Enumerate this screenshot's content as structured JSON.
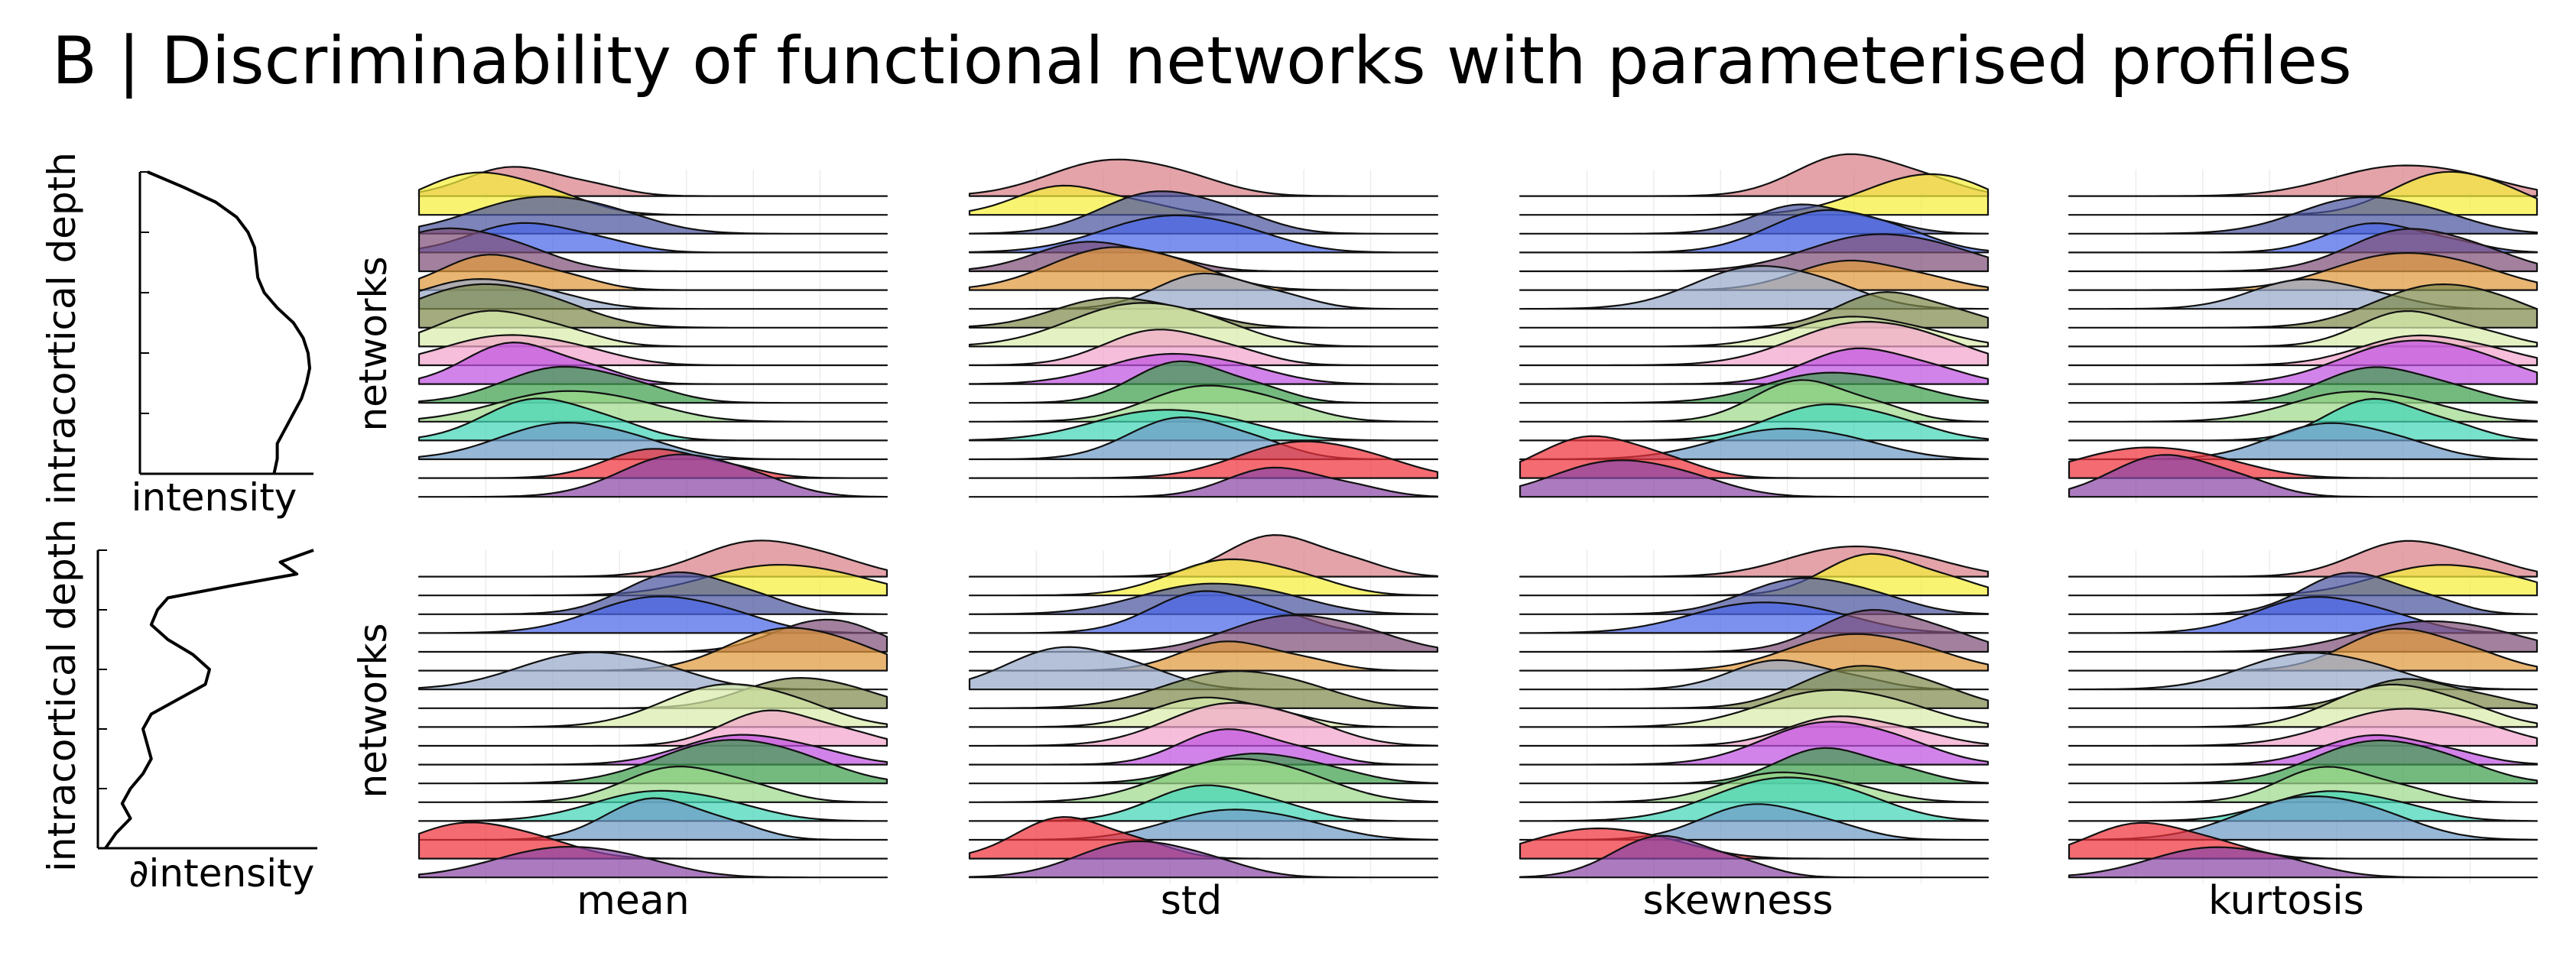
{
  "title": "B | Discriminability of functional networks with parameterised profiles",
  "profile_panels": [
    {
      "ylabel": "intracortical depth",
      "xlabel": "intensity"
    },
    {
      "ylabel": "intracortical depth",
      "xlabel": "∂intensity"
    }
  ],
  "row_label": "networks",
  "column_labels": [
    "mean",
    "std",
    "skewness",
    "kurtosis"
  ],
  "colors": [
    "#d98088",
    "#f5f03c",
    "#4b559f",
    "#4a66e8",
    "#7e4f79",
    "#e0993c",
    "#97a9c9",
    "#7f8a4e",
    "#d9edac",
    "#f2a5cc",
    "#c153e2",
    "#3e9f4e",
    "#9ed98c",
    "#43d6b7",
    "#6f9bc8",
    "#f0323b",
    "#8a47a6"
  ],
  "chart_data": {
    "type": "ridgeline",
    "n_networks": 17,
    "profile_curves": [
      {
        "panel": "intensity",
        "depth": [
          0,
          0.05,
          0.1,
          0.15,
          0.2,
          0.25,
          0.3,
          0.35,
          0.4,
          0.45,
          0.5,
          0.55,
          0.6,
          0.65,
          0.7,
          0.75,
          0.8,
          0.85,
          0.9,
          0.95,
          1.0
        ],
        "value": [
          0.0,
          0.22,
          0.42,
          0.55,
          0.62,
          0.66,
          0.67,
          0.68,
          0.72,
          0.8,
          0.9,
          0.96,
          0.99,
          1.0,
          0.98,
          0.95,
          0.9,
          0.85,
          0.8,
          0.8,
          0.78
        ]
      },
      {
        "panel": "∂intensity",
        "depth": [
          0,
          0.04,
          0.08,
          0.12,
          0.16,
          0.2,
          0.25,
          0.3,
          0.35,
          0.4,
          0.45,
          0.5,
          0.55,
          0.6,
          0.65,
          0.7,
          0.75,
          0.8,
          0.85,
          0.9,
          0.95,
          1.0
        ],
        "value": [
          1.0,
          0.84,
          0.92,
          0.6,
          0.3,
          0.25,
          0.22,
          0.3,
          0.42,
          0.5,
          0.48,
          0.35,
          0.22,
          0.18,
          0.2,
          0.22,
          0.18,
          0.12,
          0.08,
          0.12,
          0.05,
          0.0
        ]
      }
    ],
    "ridges": [
      {
        "row": "intensity",
        "column": "mean",
        "peaks": [
          0.2,
          0.12,
          0.25,
          0.22,
          0.05,
          0.15,
          0.12,
          0.12,
          0.15,
          0.18,
          0.2,
          0.3,
          0.3,
          0.25,
          0.3,
          0.5,
          0.55
        ]
      },
      {
        "row": "intensity",
        "column": "std",
        "peaks": [
          0.3,
          0.2,
          0.4,
          0.42,
          0.25,
          0.3,
          0.5,
          0.3,
          0.35,
          0.4,
          0.42,
          0.45,
          0.5,
          0.4,
          0.45,
          0.7,
          0.65
        ]
      },
      {
        "row": "intensity",
        "column": "skewness",
        "peaks": [
          0.7,
          0.85,
          0.6,
          0.65,
          0.75,
          0.7,
          0.5,
          0.78,
          0.7,
          0.72,
          0.72,
          0.65,
          0.6,
          0.65,
          0.55,
          0.15,
          0.2
        ]
      },
      {
        "row": "intensity",
        "column": "kurtosis",
        "peaks": [
          0.7,
          0.8,
          0.62,
          0.65,
          0.72,
          0.7,
          0.5,
          0.78,
          0.72,
          0.74,
          0.72,
          0.65,
          0.6,
          0.65,
          0.55,
          0.15,
          0.2
        ]
      },
      {
        "row": "∂intensity",
        "column": "mean",
        "peaks": [
          0.72,
          0.75,
          0.55,
          0.5,
          0.85,
          0.78,
          0.35,
          0.8,
          0.65,
          0.75,
          0.68,
          0.65,
          0.55,
          0.5,
          0.5,
          0.1,
          0.3
        ]
      },
      {
        "row": "∂intensity",
        "column": "std",
        "peaks": [
          0.65,
          0.55,
          0.5,
          0.5,
          0.68,
          0.55,
          0.2,
          0.55,
          0.5,
          0.55,
          0.55,
          0.6,
          0.55,
          0.5,
          0.55,
          0.2,
          0.35
        ]
      },
      {
        "row": "∂intensity",
        "column": "skewness",
        "peaks": [
          0.7,
          0.75,
          0.6,
          0.5,
          0.75,
          0.7,
          0.55,
          0.72,
          0.65,
          0.68,
          0.65,
          0.65,
          0.55,
          0.55,
          0.5,
          0.15,
          0.3
        ]
      },
      {
        "row": "∂intensity",
        "column": "kurtosis",
        "peaks": [
          0.72,
          0.78,
          0.6,
          0.52,
          0.75,
          0.7,
          0.5,
          0.72,
          0.68,
          0.7,
          0.65,
          0.65,
          0.55,
          0.55,
          0.5,
          0.15,
          0.3
        ]
      }
    ]
  }
}
